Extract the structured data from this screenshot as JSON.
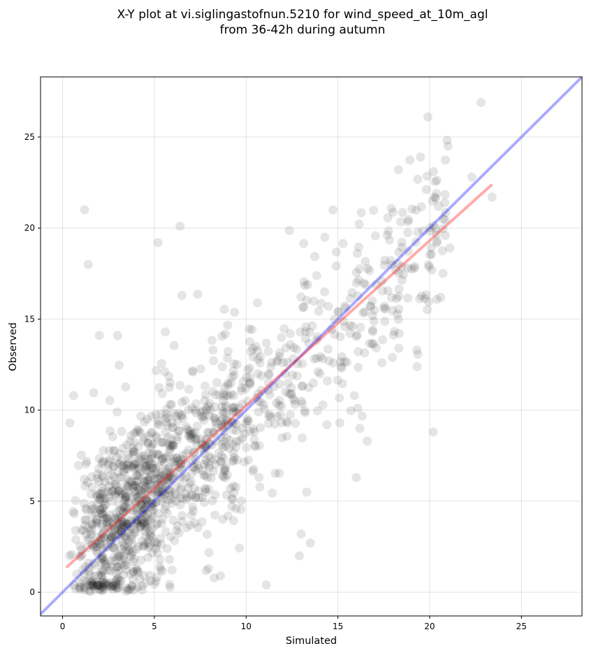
{
  "chart_data": {
    "type": "scatter",
    "title_lines": [
      "X-Y plot at vi.siglingastofnun.5210 for wind_speed_at_10m_agl",
      "from 36-42h during autumn"
    ],
    "xlabel": "Simulated",
    "ylabel": "Observed",
    "xlim": [
      -1.2,
      28.3
    ],
    "ylim": [
      -1.3,
      28.3
    ],
    "xticks": [
      0,
      5,
      10,
      15,
      20,
      25
    ],
    "yticks": [
      0,
      5,
      10,
      15,
      20,
      25
    ],
    "grid": true,
    "point_color": "#000000",
    "point_alpha": 0.1,
    "identity_line": {
      "from": [
        -1.2,
        -1.2
      ],
      "to": [
        28.3,
        28.3
      ],
      "color": "#0000ff",
      "alpha": 0.33
    },
    "fit_line": {
      "from": [
        0.25,
        1.4
      ],
      "to": [
        23.35,
        22.35
      ],
      "color": "#ff0000",
      "alpha": 0.33
    },
    "cluster_points": {
      "count": 1350,
      "seed": 20231005,
      "x_range": [
        0.2,
        23.5
      ],
      "slope": 0.9,
      "intercept": 1.2,
      "scatter_sd": 2.5
    },
    "points": [
      [
        22.8,
        26.9
      ],
      [
        19.9,
        26.1
      ],
      [
        21.0,
        24.5
      ],
      [
        19.5,
        23.9
      ],
      [
        18.3,
        23.2
      ],
      [
        20.2,
        23.1
      ],
      [
        22.3,
        22.8
      ],
      [
        23.4,
        21.7
      ],
      [
        21.1,
        18.9
      ],
      [
        20.2,
        8.8
      ],
      [
        1.2,
        21.0
      ],
      [
        1.4,
        18.0
      ],
      [
        6.4,
        20.1
      ],
      [
        5.2,
        19.2
      ],
      [
        6.5,
        16.3
      ],
      [
        16.0,
        6.3
      ],
      [
        16.6,
        8.3
      ],
      [
        15.9,
        10.8
      ],
      [
        13.3,
        5.5
      ],
      [
        11.1,
        0.4
      ],
      [
        12.9,
        2.0
      ],
      [
        13.0,
        3.2
      ],
      [
        0.4,
        9.3
      ],
      [
        0.6,
        10.8
      ],
      [
        2.0,
        14.1
      ],
      [
        3.0,
        14.1
      ],
      [
        5.6,
        14.3
      ],
      [
        15.1,
        9.3
      ],
      [
        14.4,
        9.2
      ],
      [
        19.3,
        13.3
      ],
      [
        20.6,
        16.2
      ],
      [
        17.4,
        12.6
      ],
      [
        16.2,
        9.0
      ],
      [
        8.6,
        0.9
      ],
      [
        13.5,
        2.7
      ]
    ]
  }
}
